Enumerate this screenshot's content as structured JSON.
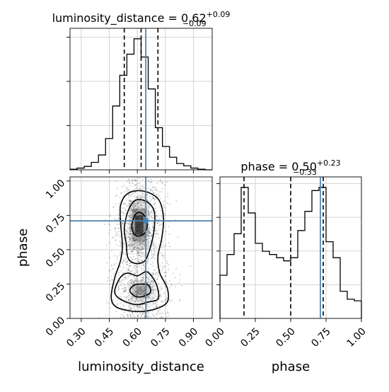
{
  "chart_data": [
    {
      "panel": "luminosity_distance-marginal",
      "type": "histogram",
      "title_param": "luminosity_distance",
      "title": "luminosity_distance = 0.62",
      "title_sup": "+0.09",
      "title_sub": "−0.09",
      "xlim": [
        0.24,
        1.0
      ],
      "bin_edges": [
        0.24,
        0.278,
        0.316,
        0.354,
        0.392,
        0.43,
        0.468,
        0.506,
        0.544,
        0.582,
        0.62,
        0.658,
        0.696,
        0.734,
        0.772,
        0.81,
        0.848,
        0.886,
        0.924,
        0.962,
        1.0
      ],
      "values": [
        1,
        3,
        6,
        13,
        26,
        55,
        112,
        166,
        203,
        230,
        198,
        142,
        74,
        41,
        22,
        11,
        7,
        3,
        1,
        0
      ],
      "quantiles": [
        0.53,
        0.62,
        0.71
      ],
      "truth": 0.645,
      "grid": true
    },
    {
      "panel": "phase-marginal",
      "type": "histogram",
      "title_param": "phase",
      "title": "phase = 0.50",
      "title_sup": "+0.23",
      "title_sub": "−0.33",
      "xlim": [
        0.0,
        1.0
      ],
      "bin_edges": [
        0,
        0.05,
        0.1,
        0.15,
        0.2,
        0.25,
        0.3,
        0.35,
        0.4,
        0.45,
        0.5,
        0.55,
        0.6,
        0.65,
        0.7,
        0.75,
        0.8,
        0.85,
        0.9,
        0.95,
        1.0
      ],
      "values": [
        27,
        40,
        53,
        82,
        66,
        47,
        42,
        40,
        38,
        36,
        38,
        55,
        67,
        80,
        82,
        48,
        38,
        17,
        12,
        11
      ],
      "quantiles": [
        0.17,
        0.5,
        0.73
      ],
      "truth": 0.71,
      "xticks": [
        "0.00",
        "0.25",
        "0.50",
        "0.75",
        "1.00"
      ],
      "xlabel": "phase",
      "grid": true
    },
    {
      "panel": "joint-2d",
      "type": "scatter",
      "xlim": [
        0.24,
        1.0
      ],
      "ylim": [
        0.0,
        1.03
      ],
      "xticks": [
        "0.30",
        "0.45",
        "0.60",
        "0.75",
        "0.90"
      ],
      "yticks": [
        "0.00",
        "0.25",
        "0.50",
        "0.75",
        "1.00"
      ],
      "xlabel": "luminosity_distance",
      "ylabel": "phase",
      "truth": {
        "x": 0.645,
        "y": 0.71
      },
      "density_peaks": [
        {
          "x": 0.61,
          "y": 0.68,
          "weight": 1.0
        },
        {
          "x": 0.62,
          "y": 0.2,
          "weight": 0.55
        }
      ],
      "contours": [
        {
          "level": "inner",
          "points": [
            [
              0.58,
              0.62
            ],
            [
              0.6,
              0.6
            ],
            [
              0.63,
              0.61
            ],
            [
              0.65,
              0.65
            ],
            [
              0.65,
              0.71
            ],
            [
              0.63,
              0.76
            ],
            [
              0.6,
              0.77
            ],
            [
              0.58,
              0.73
            ],
            [
              0.57,
              0.67
            ]
          ]
        },
        {
          "level": "lower-inner",
          "points": [
            [
              0.56,
              0.2
            ],
            [
              0.59,
              0.16
            ],
            [
              0.63,
              0.16
            ],
            [
              0.67,
              0.19
            ],
            [
              0.66,
              0.24
            ],
            [
              0.62,
              0.25
            ],
            [
              0.58,
              0.24
            ]
          ]
        },
        {
          "level": "middle",
          "points": [
            [
              0.54,
              0.55
            ],
            [
              0.55,
              0.44
            ],
            [
              0.59,
              0.4
            ],
            [
              0.64,
              0.42
            ],
            [
              0.67,
              0.52
            ],
            [
              0.69,
              0.65
            ],
            [
              0.69,
              0.78
            ],
            [
              0.65,
              0.85
            ],
            [
              0.59,
              0.86
            ],
            [
              0.55,
              0.78
            ],
            [
              0.53,
              0.65
            ]
          ]
        },
        {
          "level": "outer",
          "points": [
            [
              0.55,
              0.33
            ],
            [
              0.6,
              0.31
            ],
            [
              0.65,
              0.34
            ],
            [
              0.69,
              0.28
            ],
            [
              0.71,
              0.21
            ],
            [
              0.71,
              0.14
            ],
            [
              0.66,
              0.12
            ],
            [
              0.6,
              0.1
            ],
            [
              0.54,
              0.12
            ],
            [
              0.49,
              0.16
            ],
            [
              0.48,
              0.21
            ],
            [
              0.51,
              0.3
            ]
          ]
        },
        {
          "level": "outermost",
          "points": [
            [
              0.51,
              0.7
            ],
            [
              0.52,
              0.53
            ],
            [
              0.51,
              0.42
            ],
            [
              0.48,
              0.3
            ],
            [
              0.46,
              0.16
            ],
            [
              0.48,
              0.09
            ],
            [
              0.54,
              0.06
            ],
            [
              0.62,
              0.05
            ],
            [
              0.7,
              0.07
            ],
            [
              0.76,
              0.12
            ],
            [
              0.76,
              0.22
            ],
            [
              0.72,
              0.33
            ],
            [
              0.71,
              0.45
            ],
            [
              0.73,
              0.58
            ],
            [
              0.74,
              0.72
            ],
            [
              0.72,
              0.85
            ],
            [
              0.67,
              0.91
            ],
            [
              0.6,
              0.93
            ],
            [
              0.54,
              0.9
            ],
            [
              0.51,
              0.82
            ]
          ]
        }
      ]
    }
  ],
  "colors": {
    "truth": "#4682b4",
    "hist": "#000000",
    "grid": "#c8c8c8",
    "points": "#000000"
  }
}
